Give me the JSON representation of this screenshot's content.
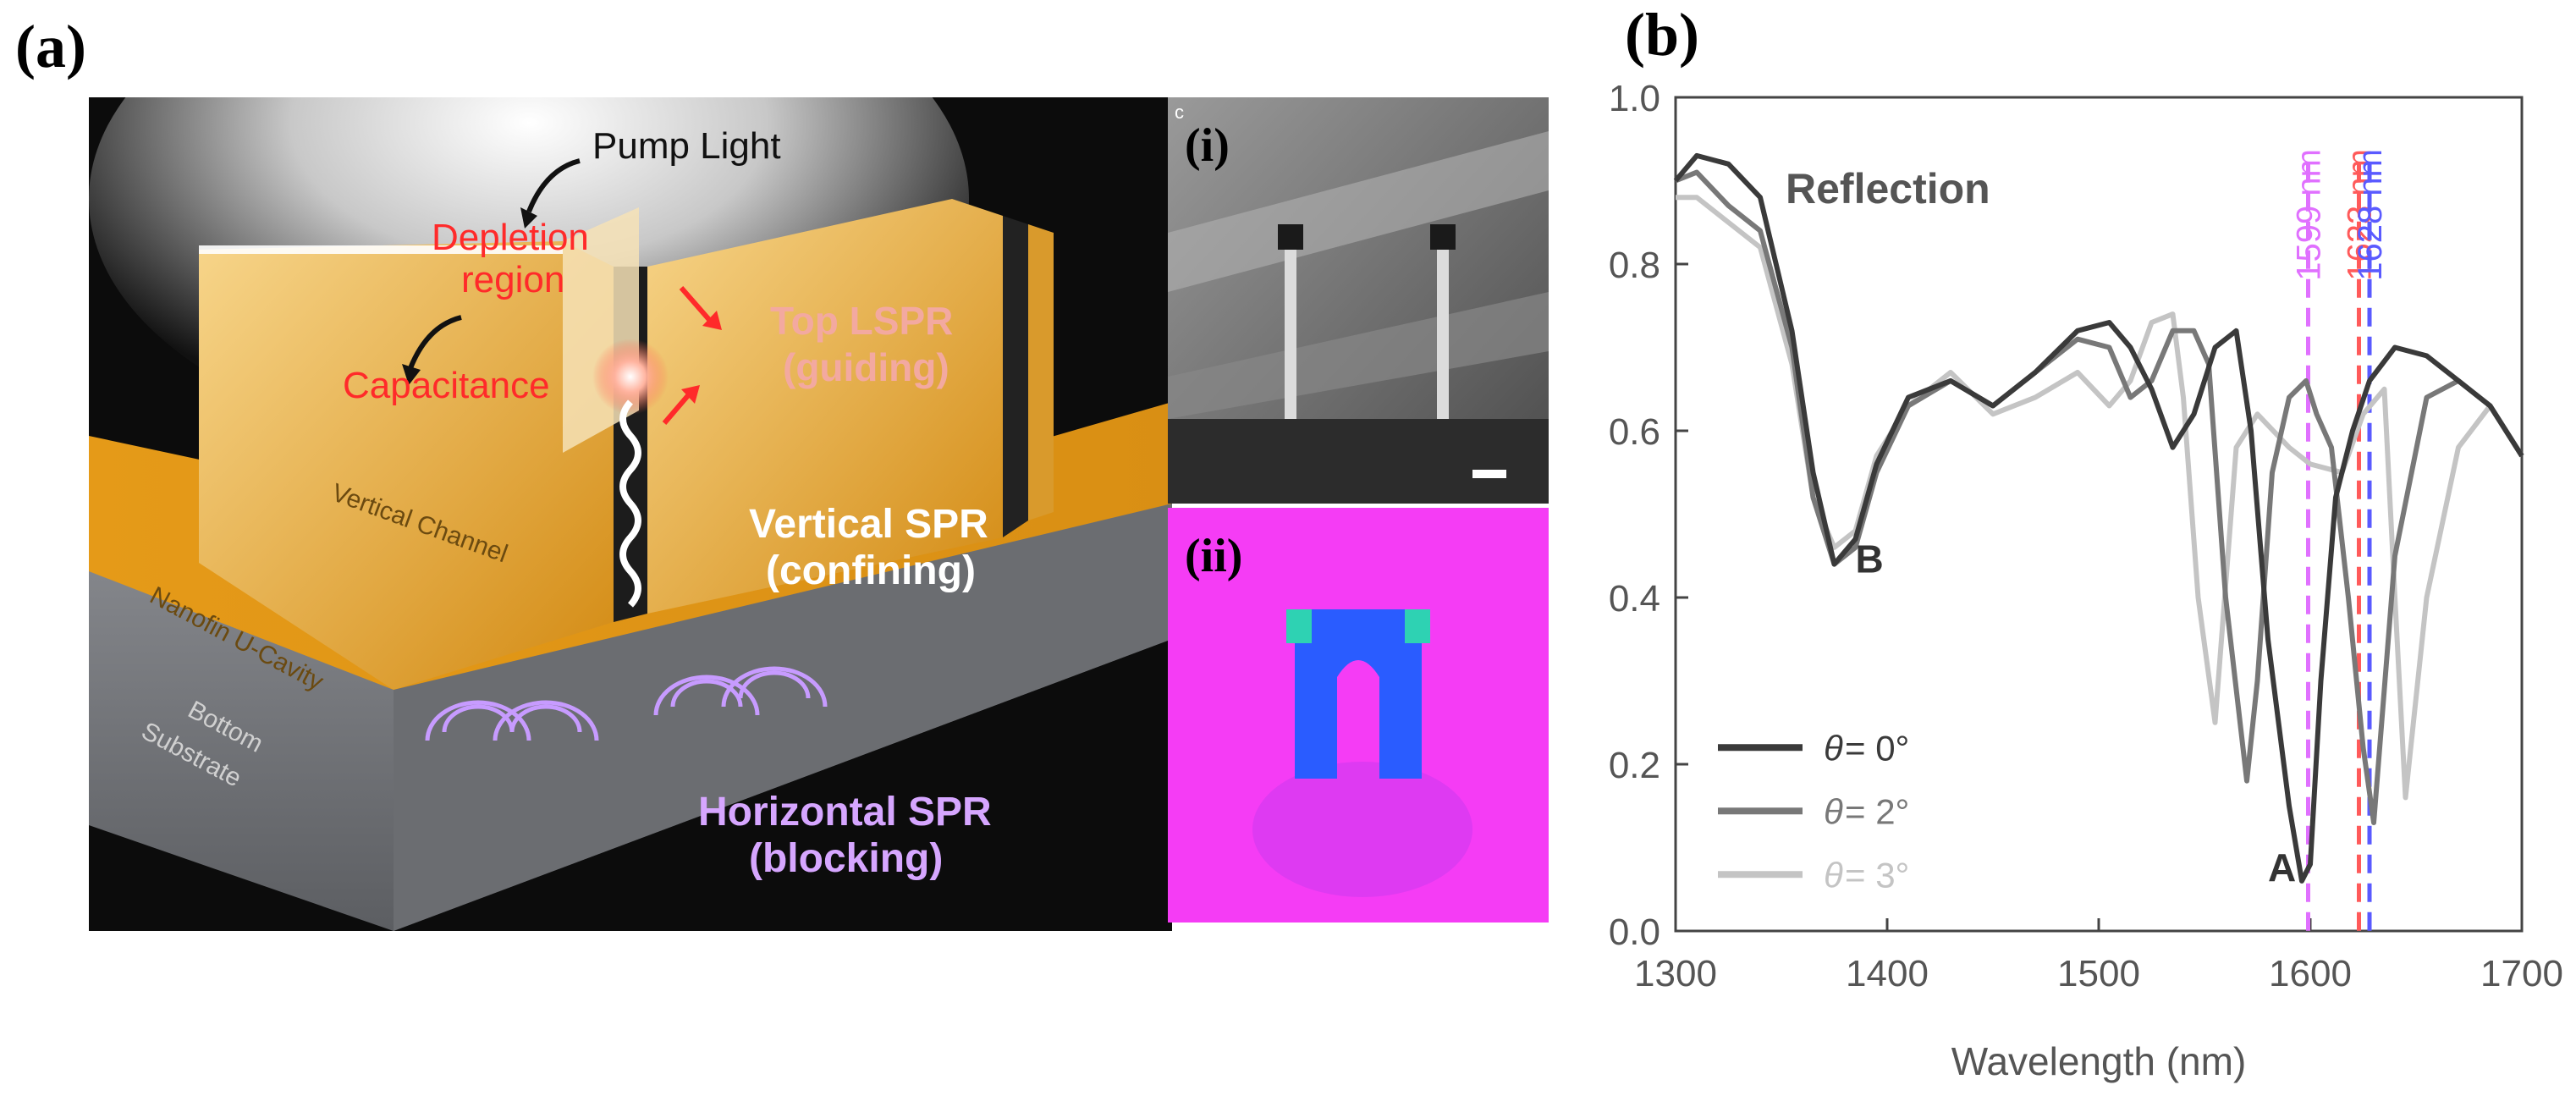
{
  "figure": {
    "panel_a_label": "(a)",
    "panel_b_label": "(b)"
  },
  "schematic": {
    "pump_light": "Pump Light",
    "depletion_line1": "Depletion",
    "depletion_line2": "region",
    "capacitance": "Capacitance",
    "top_lspr_line1": "Top LSPR",
    "top_lspr_line2": "(guiding)",
    "vertical_spr_line1": "Vertical SPR",
    "vertical_spr_line2": "(confining)",
    "horizontal_spr_line1": "Horizontal SPR",
    "horizontal_spr_line2": "(blocking)",
    "vertical_channel": "Vertical Channel",
    "nanofin_cavity": "Nanofin U-Cavity",
    "bottom_line1": "Bottom",
    "bottom_line2": "Substrate",
    "colors": {
      "gold": "#e8a21e",
      "gold_dark": "#b87a10",
      "substrate": "#7d7f84",
      "label_red": "#ff2a2a",
      "label_pink": "#f3a9a0",
      "label_purple": "#d6a6ff"
    }
  },
  "inset_i": {
    "label": "(i)",
    "corner_letter": "c"
  },
  "inset_ii": {
    "label": "(ii)",
    "colors": {
      "background": "#f53cf5",
      "field_blue": "#2a5cff",
      "field_green": "#30f0a0"
    }
  },
  "chart_data": {
    "type": "line",
    "title": "Reflection",
    "xlabel": "Wavelength (nm)",
    "ylabel": "",
    "xlim": [
      1300,
      1700
    ],
    "ylim": [
      0,
      1.0
    ],
    "xticks": [
      "1300",
      "1400",
      "1500",
      "1600",
      "1700"
    ],
    "yticks": [
      "0.0",
      "0.2",
      "0.4",
      "0.6",
      "0.8",
      "1.0"
    ],
    "series": [
      {
        "name": "θ = 0°",
        "theta_label": "θ",
        "value_label": " = 0°",
        "color": "#3a3a3a",
        "x": [
          1300,
          1310,
          1325,
          1340,
          1355,
          1365,
          1375,
          1385,
          1395,
          1410,
          1430,
          1450,
          1470,
          1490,
          1505,
          1515,
          1525,
          1535,
          1545,
          1555,
          1565,
          1572,
          1580,
          1590,
          1596,
          1600,
          1605,
          1612,
          1620,
          1628,
          1640,
          1655,
          1670,
          1685,
          1700
        ],
        "y": [
          0.9,
          0.93,
          0.92,
          0.88,
          0.72,
          0.55,
          0.44,
          0.47,
          0.56,
          0.64,
          0.66,
          0.63,
          0.67,
          0.72,
          0.73,
          0.7,
          0.65,
          0.58,
          0.62,
          0.7,
          0.72,
          0.6,
          0.35,
          0.15,
          0.06,
          0.08,
          0.3,
          0.52,
          0.6,
          0.66,
          0.7,
          0.69,
          0.66,
          0.63,
          0.57
        ]
      },
      {
        "name": "θ = 2°",
        "theta_label": "θ",
        "value_label": " = 2°",
        "color": "#787878",
        "x": [
          1300,
          1310,
          1325,
          1340,
          1355,
          1365,
          1375,
          1385,
          1395,
          1410,
          1430,
          1450,
          1470,
          1490,
          1505,
          1515,
          1525,
          1535,
          1545,
          1552,
          1560,
          1570,
          1575,
          1582,
          1590,
          1598,
          1603,
          1610,
          1618,
          1625,
          1630,
          1640,
          1655,
          1670,
          1685,
          1700
        ],
        "y": [
          0.9,
          0.91,
          0.87,
          0.84,
          0.7,
          0.52,
          0.44,
          0.46,
          0.55,
          0.63,
          0.66,
          0.63,
          0.67,
          0.71,
          0.7,
          0.64,
          0.66,
          0.72,
          0.72,
          0.68,
          0.4,
          0.18,
          0.3,
          0.55,
          0.64,
          0.66,
          0.62,
          0.58,
          0.4,
          0.22,
          0.13,
          0.45,
          0.64,
          0.66,
          0.63,
          0.57
        ]
      },
      {
        "name": "θ = 3°",
        "theta_label": "θ",
        "value_label": " = 3°",
        "color": "#c4c4c4",
        "x": [
          1300,
          1310,
          1325,
          1340,
          1355,
          1365,
          1375,
          1385,
          1395,
          1410,
          1430,
          1450,
          1470,
          1490,
          1505,
          1515,
          1525,
          1535,
          1540,
          1547,
          1555,
          1565,
          1575,
          1590,
          1600,
          1615,
          1625,
          1635,
          1640,
          1645,
          1655,
          1670,
          1685,
          1700
        ],
        "y": [
          0.88,
          0.88,
          0.85,
          0.82,
          0.68,
          0.52,
          0.46,
          0.48,
          0.57,
          0.63,
          0.67,
          0.62,
          0.64,
          0.67,
          0.63,
          0.66,
          0.73,
          0.74,
          0.64,
          0.4,
          0.25,
          0.58,
          0.62,
          0.58,
          0.56,
          0.55,
          0.62,
          0.65,
          0.4,
          0.16,
          0.4,
          0.58,
          0.63,
          0.57
        ]
      }
    ],
    "markers": [
      {
        "wavelength": 1599,
        "label": "1599 nm",
        "color": "#e070ff"
      },
      {
        "wavelength": 1623,
        "label": "1623 nm",
        "color": "#ff5a5a"
      },
      {
        "wavelength": 1628,
        "label": "1628 nm",
        "color": "#5a5aff"
      }
    ],
    "annotations": [
      {
        "text": "B",
        "x": 1385,
        "y": 0.43
      },
      {
        "text": "A",
        "x": 1580,
        "y": 0.06
      }
    ]
  }
}
